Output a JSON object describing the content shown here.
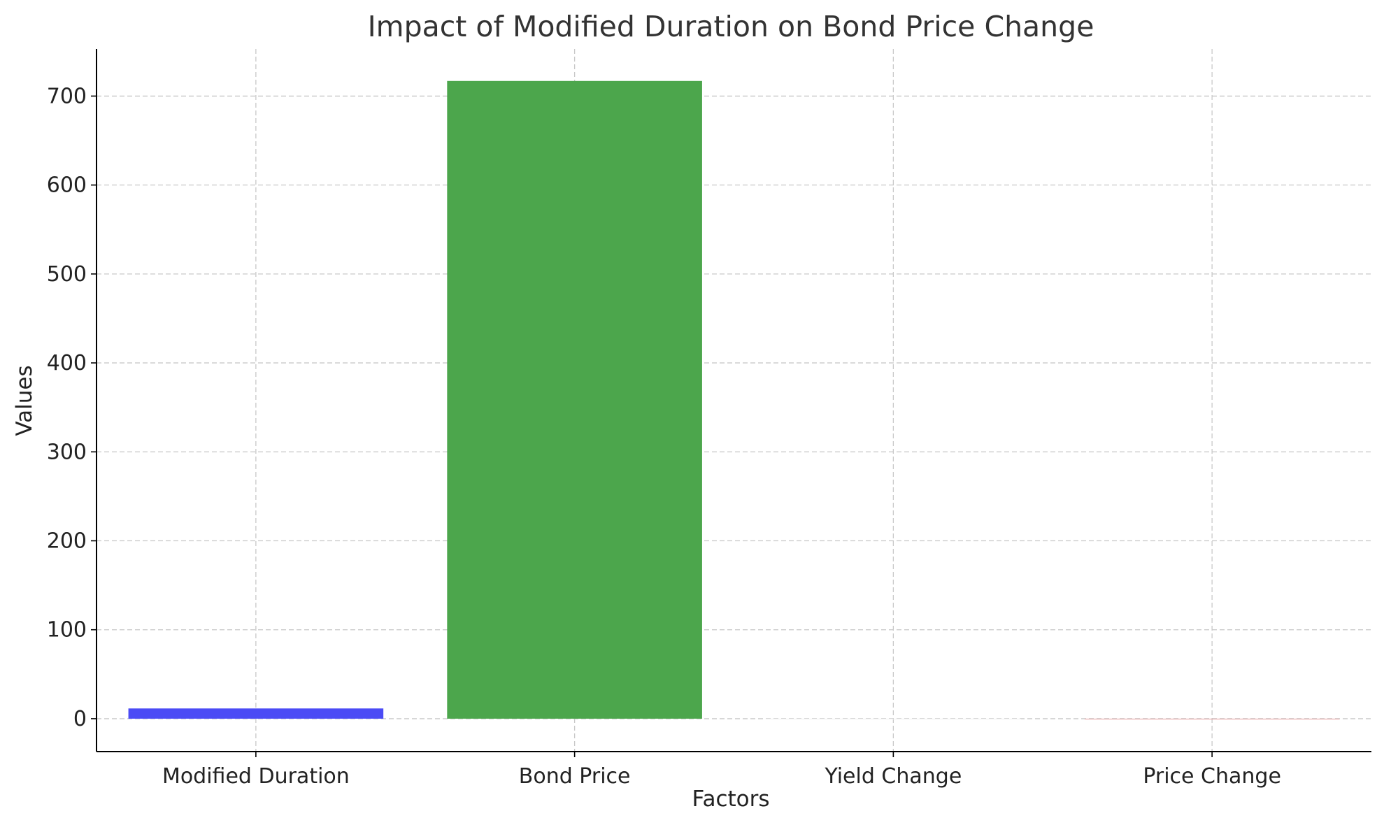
{
  "chart_data": {
    "type": "bar",
    "title": "Impact of Modified Duration on Bond Price Change",
    "xlabel": "Factors",
    "ylabel": "Values",
    "categories": [
      "Modified Duration",
      "Bond Price",
      "Yield Change",
      "Price Change"
    ],
    "values": [
      11.5,
      717,
      0.01,
      -0.8
    ],
    "colors": [
      "#4b4bf5",
      "#4ca64c",
      "#f2f2f2",
      "#e8a0a0"
    ],
    "ylim": [
      -37,
      753
    ],
    "yticks": [
      0,
      100,
      200,
      300,
      400,
      500,
      600,
      700
    ],
    "grid": true,
    "legend": "none"
  }
}
